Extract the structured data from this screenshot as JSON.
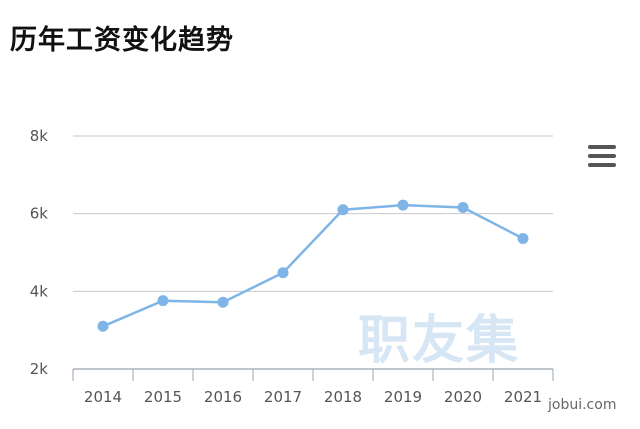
{
  "chart_data": {
    "type": "line",
    "title": "历年工资变化趋势",
    "categories": [
      "2014",
      "2015",
      "2016",
      "2017",
      "2018",
      "2019",
      "2020",
      "2021"
    ],
    "series": [
      {
        "values": [
          3100,
          3760,
          3720,
          4480,
          6100,
          6220,
          6160,
          5360
        ]
      }
    ],
    "yticks": [
      "2k",
      "4k",
      "6k",
      "8k"
    ],
    "ytick_values": [
      2000,
      4000,
      6000,
      8000
    ],
    "ylim": [
      2000,
      8000
    ],
    "grid": true,
    "legend": "none",
    "color": "#7eb5e6"
  },
  "watermark": "职友集",
  "credit": "jobui.com",
  "menu_icon": "hamburger-menu-icon"
}
